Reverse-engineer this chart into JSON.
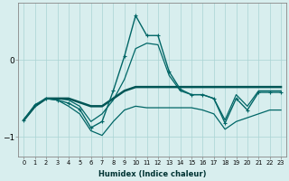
{
  "xlabel": "Humidex (Indice chaleur)",
  "background_color": "#d8eeee",
  "grid_color": "#aad4d4",
  "line_color": "#006666",
  "line_color2": "#005555",
  "x_values": [
    0,
    1,
    2,
    3,
    4,
    5,
    6,
    7,
    8,
    9,
    10,
    11,
    12,
    13,
    14,
    15,
    16,
    17,
    18,
    19,
    20,
    21,
    22,
    23
  ],
  "series_marked": [
    -0.78,
    -0.58,
    -0.5,
    -0.52,
    -0.56,
    -0.64,
    -0.88,
    -0.8,
    -0.4,
    0.05,
    0.58,
    0.32,
    0.32,
    -0.15,
    -0.38,
    -0.45,
    -0.45,
    -0.5,
    -0.82,
    -0.5,
    -0.65,
    -0.42,
    -0.42,
    -0.42
  ],
  "series_flat": [
    -0.78,
    -0.6,
    -0.5,
    -0.5,
    -0.5,
    -0.55,
    -0.6,
    -0.6,
    -0.5,
    -0.4,
    -0.35,
    -0.35,
    -0.35,
    -0.35,
    -0.35,
    -0.35,
    -0.35,
    -0.35,
    -0.35,
    -0.35,
    -0.35,
    -0.35,
    -0.35,
    -0.35
  ],
  "series_lower1": [
    -0.78,
    -0.6,
    -0.5,
    -0.52,
    -0.6,
    -0.7,
    -0.92,
    -0.98,
    -0.8,
    -0.65,
    -0.6,
    -0.62,
    -0.62,
    -0.62,
    -0.62,
    -0.62,
    -0.65,
    -0.7,
    -0.9,
    -0.8,
    -0.75,
    -0.7,
    -0.65,
    -0.65
  ],
  "series_lower2": [
    -0.78,
    -0.6,
    -0.5,
    -0.5,
    -0.52,
    -0.6,
    -0.8,
    -0.7,
    -0.52,
    -0.25,
    0.15,
    0.22,
    0.2,
    -0.2,
    -0.4,
    -0.45,
    -0.45,
    -0.5,
    -0.78,
    -0.45,
    -0.6,
    -0.4,
    -0.4,
    -0.4
  ],
  "ylim": [
    -1.25,
    0.75
  ],
  "xlim": [
    -0.5,
    23.5
  ]
}
